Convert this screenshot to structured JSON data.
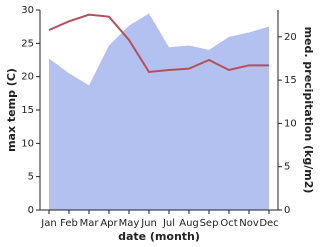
{
  "chart_data": {
    "type": "area-line",
    "xlabel": "date (month)",
    "ylabel": "max temp (C)",
    "y2label": "med. precipitation (kg/m2)",
    "categories": [
      "Jan",
      "Feb",
      "Mar",
      "Apr",
      "May",
      "Jun",
      "Jul",
      "Aug",
      "Sep",
      "Oct",
      "Nov",
      "Dec"
    ],
    "series": [
      {
        "name": "max temp",
        "color": "#b5505a",
        "values": [
          27,
          28.3,
          29.3,
          29,
          25.5,
          20.7,
          21,
          21.2,
          22.5,
          21,
          21.7,
          21.7
        ]
      },
      {
        "name": "med. precipitation",
        "color": "#b3c1f1",
        "axis": "y2",
        "values": [
          17.5,
          15.8,
          14.4,
          19,
          21.3,
          22.7,
          18.8,
          19,
          18.5,
          20,
          20.5,
          21.2
        ]
      }
    ],
    "ylim": [
      0,
      30
    ],
    "yticks": [
      0,
      5,
      10,
      15,
      20,
      25,
      30
    ],
    "y2lim": [
      0,
      23.1
    ],
    "y2ticks": [
      0,
      5,
      10,
      15,
      20
    ]
  }
}
